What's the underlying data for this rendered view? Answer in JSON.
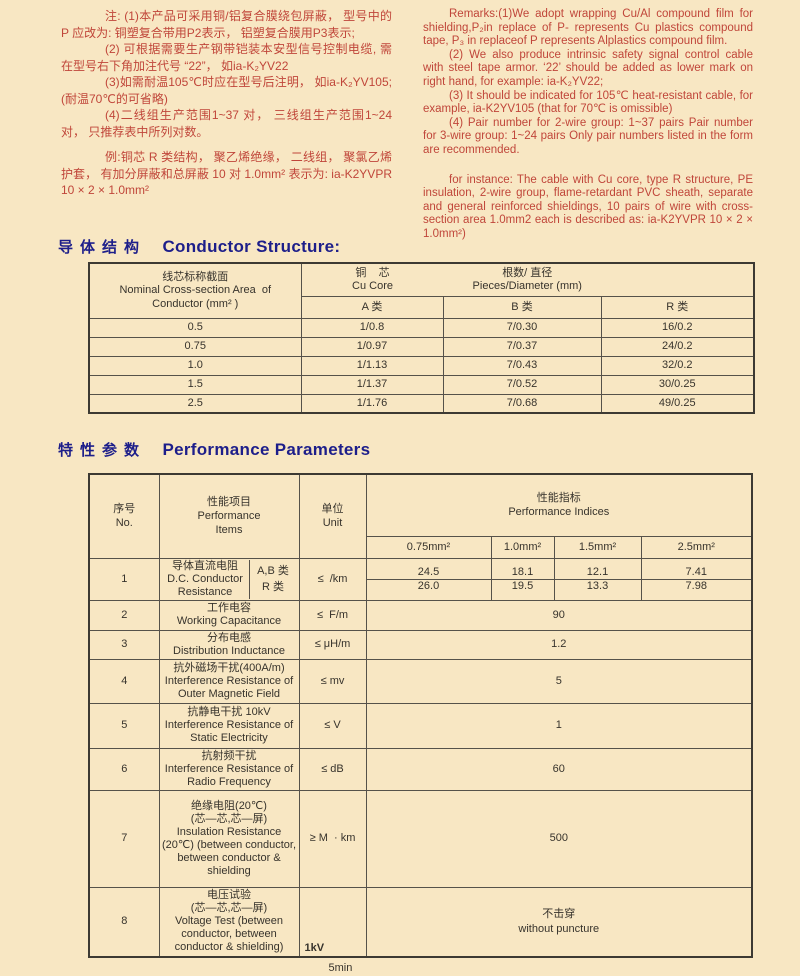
{
  "page": {
    "background": "#f8e7c3",
    "note_red": "#c0463a",
    "heading_blue": "#1d1e8a",
    "table_ink": "#37332c",
    "border": "#56524a"
  },
  "notes": {
    "left": {
      "paragraphs": [
        "注: (1)本产品可采用铜/铝复合膜绕包屏蔽， 型号中的 P 应改为: 铜塑复合带用P2表示， 铝塑复合膜用P3表示;",
        "(2) 可根据需要生产钢带铠装本安型信号控制电缆, 需在型号右下角加注代号 “22”， 如ia-K₂YV22",
        "(3)如需耐温105℃时应在型号后注明， 如ia-K₂YV105; (耐温70℃的可省略)",
        "(4)二线组生产范围1~37 对， 三线组生产范围1~24 对， 只推荐表中所列对数。"
      ],
      "example": "例:铜芯 R 类结构， 聚乙烯绝缘， 二线组， 聚氯乙烯护套， 有加分屏蔽和总屏蔽 10 对 1.0mm² 表示为: ia-K2YVPR 10 × 2 × 1.0mm²"
    },
    "right": {
      "paragraphs": [
        "Remarks:(1)We adopt wrapping Cu/Al compound film for shielding,P₂in replace of P- represents Cu plastics compound tape, P₃ in replaceof P represents Alplastics compound film.",
        "(2) We also produce intrinsic safety signal control cable with steel tape armor. ‘22’ should be added as lower mark on right hand, for example: ia-K₂YV22;",
        "(3) It should be indicated for 105℃ heat-resistant cable, for example, ia-K2YV105 (that for 70℃ is omissible)",
        "(4) Pair number for 2-wire group: 1~37 pairs Pair number for 3-wire group: 1~24 pairs Only pair numbers listed in the form are recommended."
      ],
      "example": "for instance: The cable with Cu core, type R structure, PE insulation, 2-wire group, flame-retardant PVC sheath, separate and general reinforced shieldings, 10 pairs of wire with cross-section area 1.0mm2  each is described as:  ia-K2YVPR 10 × 2 × 1.0mm²)"
    }
  },
  "conductor": {
    "title_zh": "导体结构",
    "title_en": "Conductor Structure:",
    "table": {
      "nominal_zh": "线芯标称截面",
      "nominal_en1": "Nominal Cross-section Area  of",
      "nominal_en2": "Conductor (mm² )",
      "cu_zh": "铜    芯",
      "cu_en": "Cu Core",
      "pieces_zh": "根数/ 直径",
      "pieces_en": "Pieces/Diameter (mm)",
      "classes": [
        "A 类",
        "B 类",
        "R 类"
      ],
      "rows": [
        [
          "0.5",
          "1/0.8",
          "7/0.30",
          "16/0.2"
        ],
        [
          "0.75",
          "1/0.97",
          "7/0.37",
          "24/0.2"
        ],
        [
          "1.0",
          "1/1.13",
          "7/0.43",
          "32/0.2"
        ],
        [
          "1.5",
          "1/1.37",
          "7/0.52",
          "30/0.25"
        ],
        [
          "2.5",
          "1/1.76",
          "7/0.68",
          "49/0.25"
        ]
      ]
    }
  },
  "performance": {
    "title_zh": "特性参数",
    "title_en": "Performance Parameters",
    "table": {
      "no_zh": "序号",
      "no_en": "No.",
      "item_zh": "性能项目",
      "item_en1": "Performance",
      "item_en2": "Items",
      "unit_zh": "单位",
      "unit_en": "Unit",
      "indices_zh": "性能指标",
      "indices_en": "Performance Indices",
      "sizes": [
        "0.75mm²",
        "1.0mm²",
        "1.5mm²",
        "2.5mm²"
      ],
      "rows": [
        {
          "no": "1",
          "zh": "导体直流电阻",
          "en": "D.C. Conductor Resistance",
          "class_labels": [
            "A,B 类",
            "R 类"
          ],
          "unit": "≤  /km",
          "dual_values": [
            [
              "24.5",
              "18.1",
              "12.1",
              "7.41"
            ],
            [
              "26.0",
              "19.5",
              "13.3",
              "7.98"
            ]
          ]
        },
        {
          "no": "2",
          "zh": "工作电容",
          "en": "Working Capacitance",
          "unit": "≤  F/m",
          "value": [
            "90"
          ]
        },
        {
          "no": "3",
          "zh": "分布电感",
          "en": "Distribution Inductance",
          "unit": "≤ μH/m",
          "value": [
            "1.2"
          ]
        },
        {
          "no": "4",
          "zh": "抗外磁场干扰(400A/m)",
          "en": "Interference Resistance of Outer Magnetic Field",
          "unit": "≤ mv",
          "value": [
            "5"
          ]
        },
        {
          "no": "5",
          "zh": "抗静电干扰 10kV",
          "en": "Interference Resistance of Static Electricity",
          "unit": "≤ V",
          "value": [
            "1"
          ]
        },
        {
          "no": "6",
          "zh": "抗射频干扰",
          "en": "Interference Resistance of Radio Frequency",
          "unit": "≤ dB",
          "value": [
            "60"
          ]
        },
        {
          "no": "7",
          "zh": "绝缘电阻(20℃)",
          "zh2": "(芯—芯,芯—屏)",
          "en": "Insulation Resistance  (20℃) (between conductor, between conductor & shielding",
          "unit": "≥ M  · km",
          "value": [
            "500"
          ]
        },
        {
          "no": "8",
          "zh": "电压试验",
          "zh2": "(芯—芯,芯—屏)",
          "en": "Voltage Test (between conductor, between conductor & shielding)",
          "unit_diagonal": {
            "top": "1kV",
            "bottom": "5min"
          },
          "value": [
            "不击穿",
            "without puncture"
          ]
        }
      ]
    }
  }
}
